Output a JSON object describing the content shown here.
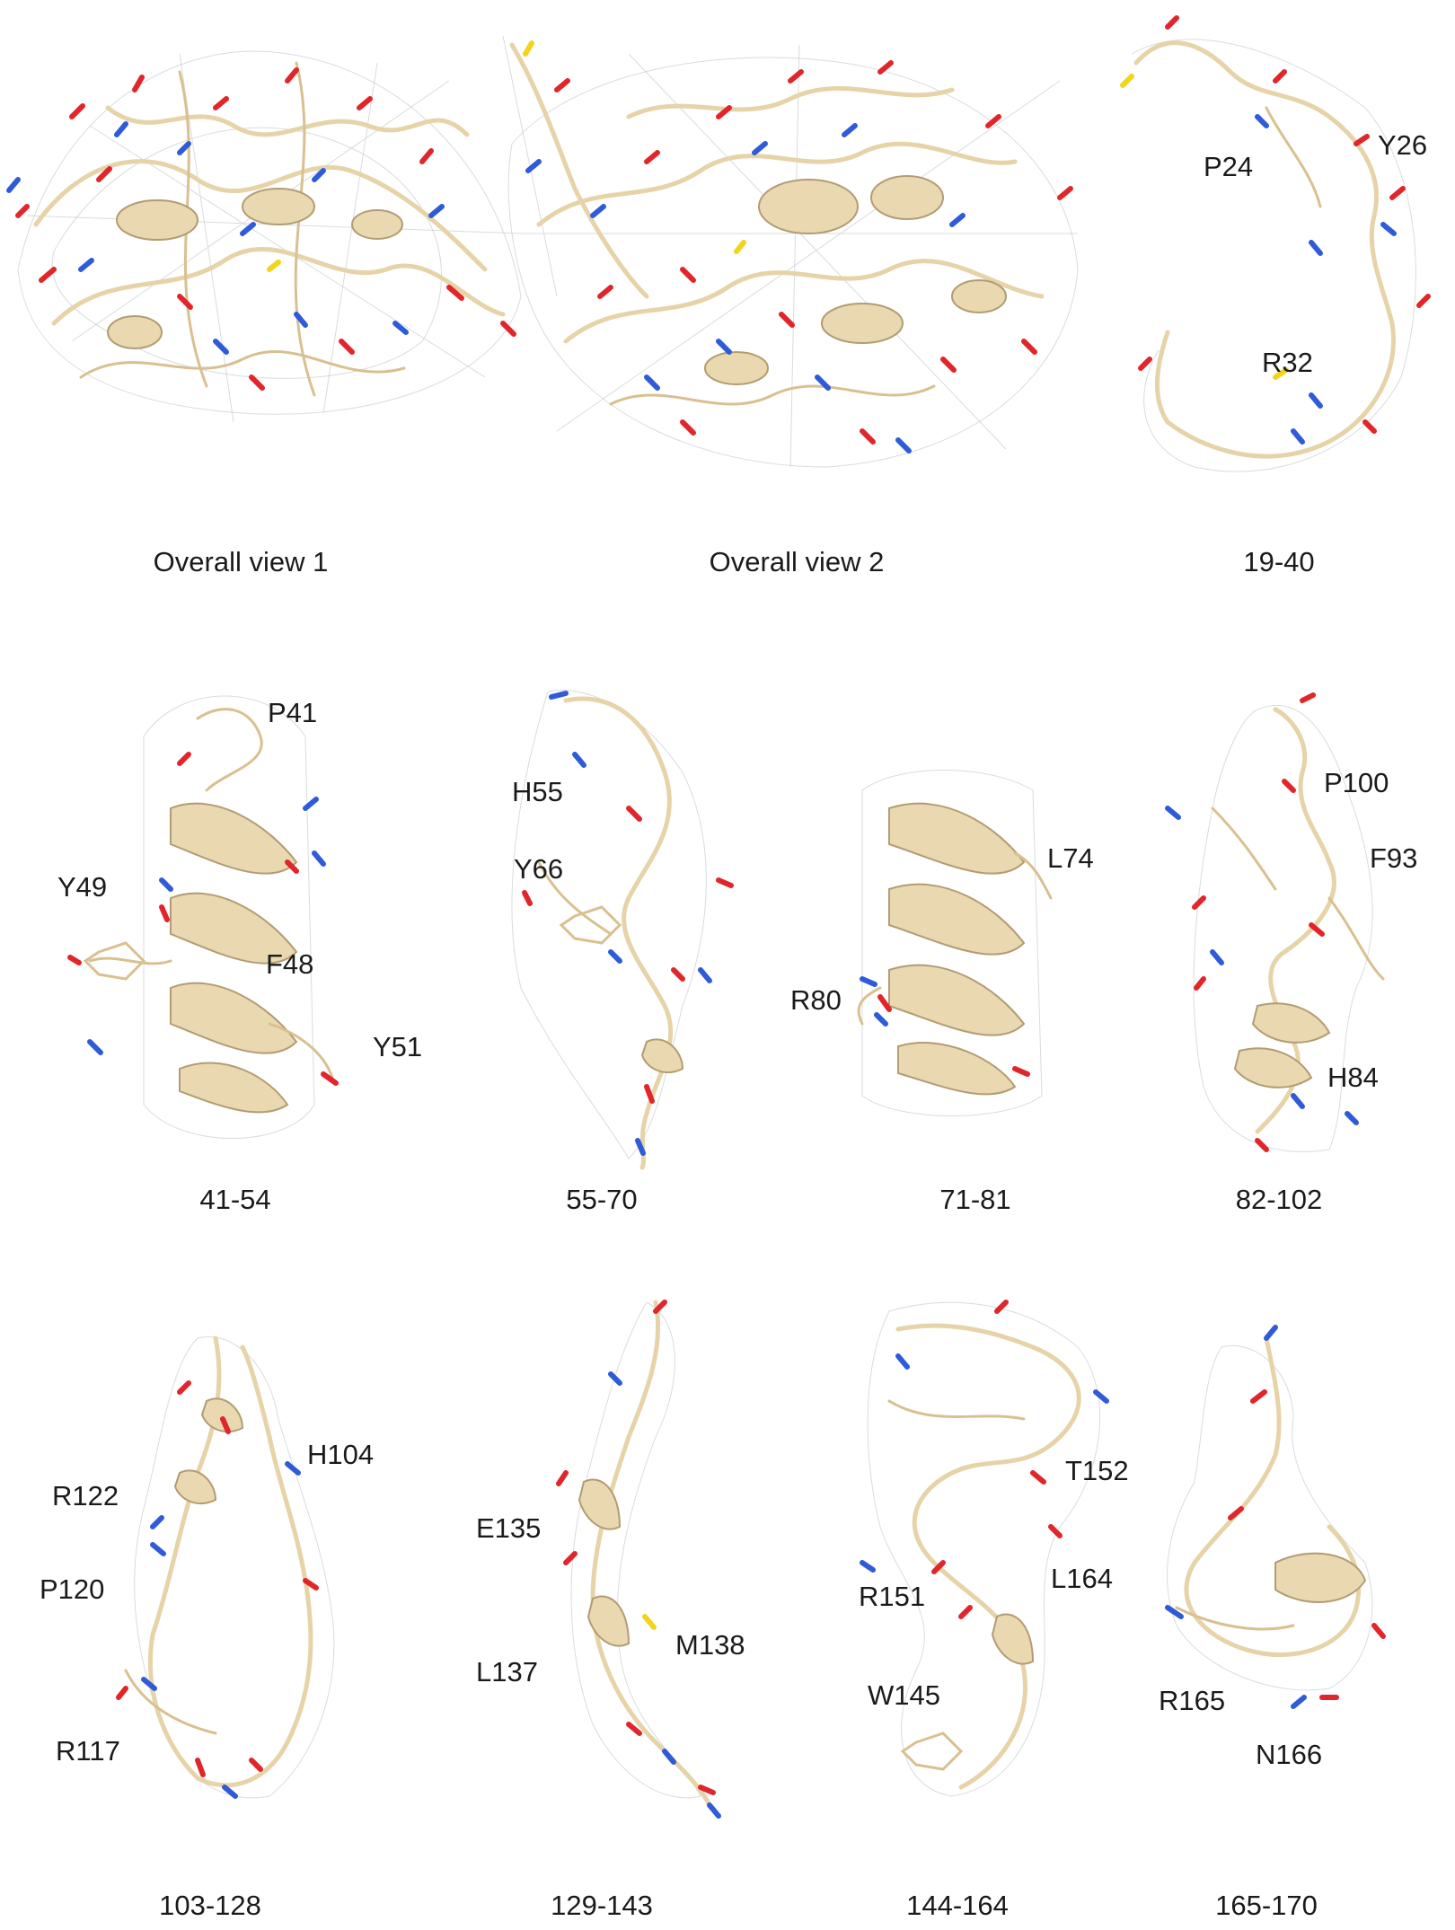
{
  "colors": {
    "backbone": "#e7d3a8",
    "helix": "#ead8b0",
    "mesh": "#b9bdc6",
    "oxygen": "#e0262b",
    "nitrogen": "#2f5bd9",
    "sulfur": "#f1d41c"
  },
  "panels": [
    {
      "caption": "Overall view 1",
      "labels": []
    },
    {
      "caption": "Overall view 2",
      "labels": []
    },
    {
      "caption": "19-40",
      "labels": [
        "P24",
        "Y26",
        "R32"
      ]
    },
    {
      "caption": "41-54",
      "labels": [
        "P41",
        "Y49",
        "F48",
        "Y51"
      ]
    },
    {
      "caption": "55-70",
      "labels": [
        "H55",
        "Y66"
      ]
    },
    {
      "caption": "71-81",
      "labels": [
        "L74",
        "R80"
      ]
    },
    {
      "caption": "82-102",
      "labels": [
        "P100",
        "F93",
        "H84"
      ]
    },
    {
      "caption": "103-128",
      "labels": [
        "H104",
        "R122",
        "P120",
        "R117"
      ]
    },
    {
      "caption": "129-143",
      "labels": [
        "E135",
        "M138",
        "L137"
      ]
    },
    {
      "caption": "144-164",
      "labels": [
        "T152",
        "L164",
        "R151",
        "W145"
      ]
    },
    {
      "caption": "165-170",
      "labels": [
        "R165",
        "N166"
      ]
    }
  ]
}
